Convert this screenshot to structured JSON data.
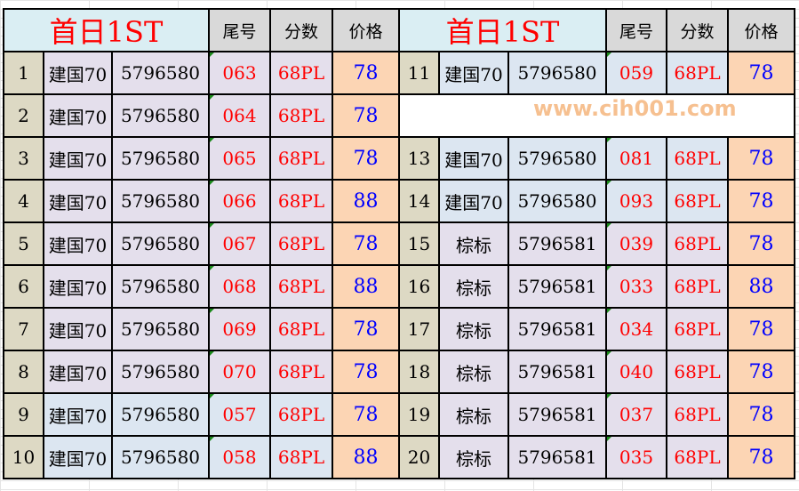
{
  "header": {
    "title_left": "首日1ST",
    "title_right": "首日1ST",
    "col_tail": "尾号",
    "col_score": "分数",
    "col_price": "价格"
  },
  "colors": {
    "title": "#ff0000",
    "tail": "#ff0000",
    "price": "#0000ff",
    "price_bg": "#fcd5b4",
    "index_bg": "#ddd9c4",
    "header_bg": "#daeef3"
  },
  "left_rows": [
    {
      "no": "1",
      "name": "建国70",
      "code": "5796580",
      "tail": "063",
      "score": "68PL",
      "price": "78"
    },
    {
      "no": "2",
      "name": "建国70",
      "code": "5796580",
      "tail": "064",
      "score": "68PL",
      "price": "78"
    },
    {
      "no": "3",
      "name": "建国70",
      "code": "5796580",
      "tail": "065",
      "score": "68PL",
      "price": "78"
    },
    {
      "no": "4",
      "name": "建国70",
      "code": "5796580",
      "tail": "066",
      "score": "68PL",
      "price": "88"
    },
    {
      "no": "5",
      "name": "建国70",
      "code": "5796580",
      "tail": "067",
      "score": "68PL",
      "price": "78"
    },
    {
      "no": "6",
      "name": "建国70",
      "code": "5796580",
      "tail": "068",
      "score": "68PL",
      "price": "88"
    },
    {
      "no": "7",
      "name": "建国70",
      "code": "5796580",
      "tail": "069",
      "score": "68PL",
      "price": "78"
    },
    {
      "no": "8",
      "name": "建国70",
      "code": "5796580",
      "tail": "070",
      "score": "68PL",
      "price": "78"
    },
    {
      "no": "9",
      "name": "建国70",
      "code": "5796580",
      "tail": "057",
      "score": "68PL",
      "price": "78"
    },
    {
      "no": "10",
      "name": "建国70",
      "code": "5796580",
      "tail": "058",
      "score": "68PL",
      "price": "88"
    }
  ],
  "right_rows": [
    {
      "no": "11",
      "name": "建国70",
      "code": "5796580",
      "tail": "059",
      "score": "68PL",
      "price": "78"
    },
    null,
    {
      "no": "13",
      "name": "建国70",
      "code": "5796580",
      "tail": "081",
      "score": "68PL",
      "price": "78"
    },
    {
      "no": "14",
      "name": "建国70",
      "code": "5796580",
      "tail": "093",
      "score": "68PL",
      "price": "78"
    },
    {
      "no": "15",
      "name": "棕标",
      "code": "5796581",
      "tail": "039",
      "score": "68PL",
      "price": "78"
    },
    {
      "no": "16",
      "name": "棕标",
      "code": "5796581",
      "tail": "033",
      "score": "68PL",
      "price": "88"
    },
    {
      "no": "17",
      "name": "棕标",
      "code": "5796581",
      "tail": "034",
      "score": "68PL",
      "price": "78"
    },
    {
      "no": "18",
      "name": "棕标",
      "code": "5796581",
      "tail": "040",
      "score": "68PL",
      "price": "78"
    },
    {
      "no": "19",
      "name": "棕标",
      "code": "5796581",
      "tail": "037",
      "score": "68PL",
      "price": "78"
    },
    {
      "no": "20",
      "name": "棕标",
      "code": "5796581",
      "tail": "035",
      "score": "68PL",
      "price": "78"
    }
  ],
  "watermark": "www.cih001.com"
}
